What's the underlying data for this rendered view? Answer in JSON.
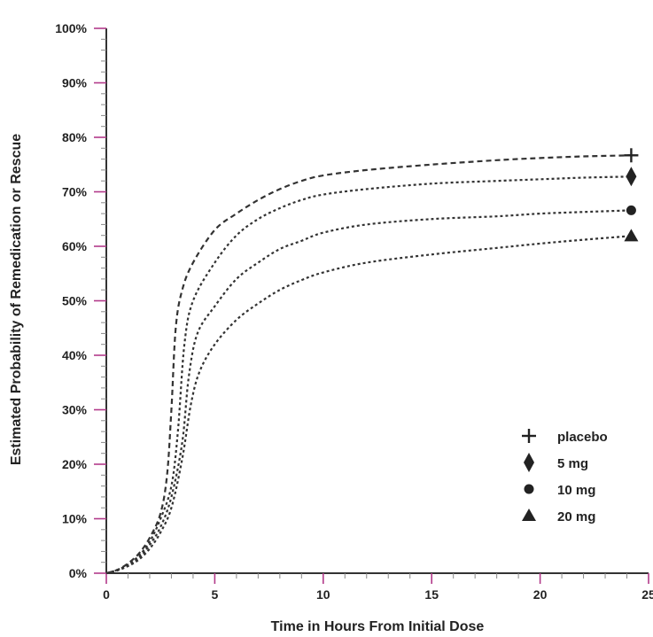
{
  "chart_data": {
    "type": "line",
    "title": "",
    "xlabel": "Time in Hours From Initial Dose",
    "ylabel": "Estimated Probability of Remedication or Rescue",
    "xlim": [
      0,
      25
    ],
    "ylim": [
      0,
      100
    ],
    "x_ticks": [
      "0",
      "5",
      "10",
      "15",
      "20",
      "25"
    ],
    "y_ticks": [
      "0%",
      "10%",
      "20%",
      "30%",
      "40%",
      "50%",
      "60%",
      "70%",
      "80%",
      "90%",
      "100%"
    ],
    "grid": false,
    "legend_position": "bottom-right",
    "tick_accent_color": "#b23a8a",
    "series": [
      {
        "name": "placebo",
        "marker": "plus",
        "dash": "6,4",
        "x": [
          0,
          0.5,
          1,
          1.5,
          2,
          2.5,
          2.8,
          3.0,
          3.2,
          3.5,
          4,
          5,
          6,
          7,
          8,
          9,
          10,
          12,
          15,
          18,
          20,
          22,
          24.2
        ],
        "y": [
          0,
          0.6,
          1.8,
          3.6,
          6.5,
          11,
          18,
          30,
          45,
          52,
          57,
          63,
          66,
          68.5,
          70.5,
          72,
          73,
          74,
          75,
          75.8,
          76.2,
          76.5,
          76.7
        ]
      },
      {
        "name": "5 mg",
        "marker": "diamond",
        "dash": "3,3",
        "x": [
          0,
          0.5,
          1,
          1.5,
          2,
          2.5,
          3.0,
          3.3,
          3.6,
          4,
          5,
          6,
          7,
          8,
          9,
          10,
          12,
          15,
          18,
          20,
          22,
          24.2
        ],
        "y": [
          0,
          0.6,
          1.6,
          3.2,
          5.8,
          10,
          16,
          26,
          42,
          50,
          57,
          62,
          65,
          67,
          68.5,
          69.5,
          70.5,
          71.5,
          72,
          72.3,
          72.6,
          72.8
        ]
      },
      {
        "name": "10 mg",
        "marker": "circle",
        "dash": "3,3",
        "x": [
          0,
          0.5,
          1,
          1.5,
          2,
          2.5,
          3.0,
          3.5,
          3.8,
          4.2,
          5,
          6,
          7,
          8,
          9,
          10,
          12,
          15,
          18,
          20,
          22,
          24.2
        ],
        "y": [
          0,
          0.5,
          1.4,
          2.8,
          5.2,
          8.5,
          14,
          24,
          36,
          44,
          49,
          54,
          57,
          59.5,
          61,
          62.5,
          64,
          65,
          65.5,
          66,
          66.3,
          66.6
        ]
      },
      {
        "name": "20 mg",
        "marker": "triangle",
        "dash": "3,3",
        "x": [
          0,
          0.5,
          1,
          1.5,
          2,
          2.5,
          3.0,
          3.5,
          3.9,
          4.3,
          5,
          6,
          7,
          8,
          9,
          10,
          12,
          15,
          18,
          20,
          22,
          24.2
        ],
        "y": [
          0,
          0.5,
          1.3,
          2.5,
          4.5,
          7.5,
          12,
          21,
          31,
          37,
          42,
          46.5,
          49.5,
          52,
          53.8,
          55.2,
          57,
          58.5,
          59.7,
          60.5,
          61.2,
          61.9
        ]
      }
    ]
  }
}
